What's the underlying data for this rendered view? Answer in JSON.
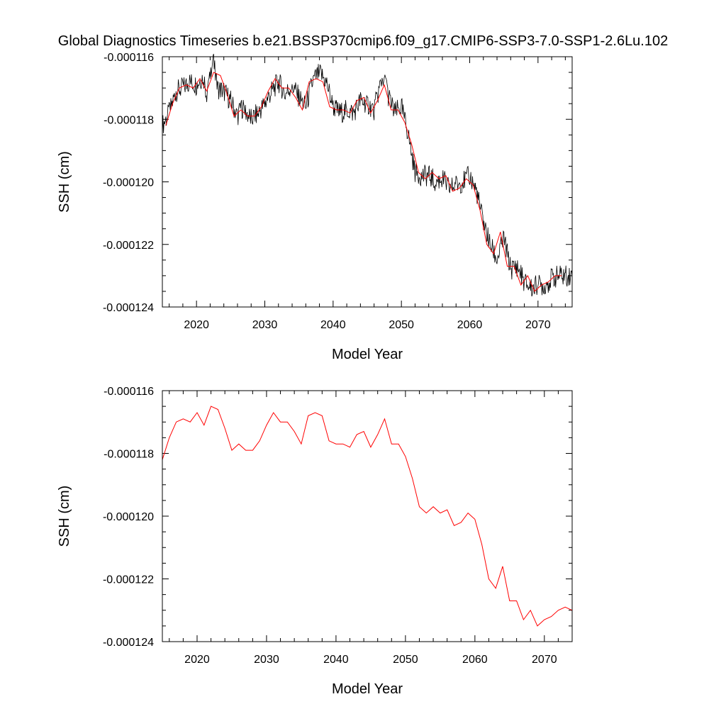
{
  "figure_title": "Global Diagnostics Timeseries b.e21.BSSP370cmip6.f09_g17.CMIP6-SSP3-7.0-SSP1-2.6Lu.102",
  "colors": {
    "monthly": "#000000",
    "annual": "#ff0000"
  },
  "chart_data": [
    {
      "type": "line",
      "title": "Global Diagnostics Timeseries b.e21.BSSP370cmip6.f09_g17.CMIP6-SSP3-7.0-SSP1-2.6Lu.102",
      "xlabel": "Model Year",
      "ylabel": "SSH (cm)",
      "xlim": [
        2015,
        2075
      ],
      "ylim": [
        -0.000124,
        -0.000116
      ],
      "x_ticks": [
        "2020",
        "2030",
        "2040",
        "2050",
        "2060",
        "2070"
      ],
      "y_ticks": [
        "-0.000116",
        "-0.000118",
        "-0.000120",
        "-0.000122",
        "-0.000124"
      ],
      "grid": false,
      "series": [
        {
          "kind": "monthly",
          "color": "#000000",
          "x": [
            2015.0,
            2016.0,
            2017.0,
            2018.0,
            2019.0,
            2020.0,
            2021.0,
            2021.5,
            2022.0,
            2022.5,
            2023.0,
            2024.0,
            2025.0,
            2026.0,
            2026.5,
            2027.0,
            2028.0,
            2029.0,
            2030.0,
            2031.0,
            2032.0,
            2033.0,
            2034.0,
            2035.0,
            2036.0,
            2037.0,
            2038.0,
            2039.0,
            2040.0,
            2041.0,
            2042.0,
            2043.0,
            2044.0,
            2045.0,
            2046.0,
            2047.0,
            2047.5,
            2048.0,
            2049.0,
            2050.0,
            2051.0,
            2052.0,
            2053.0,
            2054.0,
            2055.0,
            2056.0,
            2057.0,
            2058.0,
            2059.0,
            2060.0,
            2061.0,
            2062.0,
            2063.0,
            2064.0,
            2065.0,
            2066.0,
            2067.0,
            2068.0,
            2069.0,
            2070.0,
            2071.0,
            2072.0,
            2073.0,
            2074.0,
            2075.0
          ],
          "y": [
            -0.0001182,
            -0.0001178,
            -0.0001171,
            -0.000117,
            -0.0001168,
            -0.0001169,
            -0.0001166,
            -0.0001172,
            -0.0001167,
            -0.0001162,
            -0.000117,
            -0.0001171,
            -0.0001174,
            -0.0001179,
            -0.0001176,
            -0.0001177,
            -0.000118,
            -0.0001178,
            -0.0001175,
            -0.0001171,
            -0.0001168,
            -0.0001172,
            -0.0001169,
            -0.0001173,
            -0.0001176,
            -0.0001168,
            -0.0001165,
            -0.0001168,
            -0.0001176,
            -0.0001178,
            -0.0001177,
            -0.0001178,
            -0.0001174,
            -0.0001175,
            -0.0001177,
            -0.0001168,
            -0.0001166,
            -0.0001172,
            -0.0001178,
            -0.0001176,
            -0.0001185,
            -0.0001197,
            -0.0001198,
            -0.0001198,
            -0.00012,
            -0.0001199,
            -0.0001202,
            -0.0001201,
            -0.00012,
            -0.0001198,
            -0.0001203,
            -0.0001213,
            -0.000122,
            -0.0001225,
            -0.0001218,
            -0.0001228,
            -0.0001227,
            -0.0001232,
            -0.0001234,
            -0.0001233,
            -0.0001233,
            -0.0001231,
            -0.000123,
            -0.000123,
            -0.000123
          ]
        },
        {
          "kind": "annual",
          "color": "#ff0000",
          "x": [
            2015.5,
            2016.5,
            2017.5,
            2018.5,
            2019.5,
            2020.5,
            2021.5,
            2022.5,
            2023.5,
            2024.5,
            2025.5,
            2026.5,
            2027.5,
            2028.5,
            2029.5,
            2030.5,
            2031.5,
            2032.5,
            2033.5,
            2034.5,
            2035.5,
            2036.5,
            2037.5,
            2038.5,
            2039.5,
            2040.5,
            2041.5,
            2042.5,
            2043.5,
            2044.5,
            2045.5,
            2046.5,
            2047.5,
            2048.5,
            2049.5,
            2050.5,
            2051.5,
            2052.5,
            2053.5,
            2054.5,
            2055.5,
            2056.5,
            2057.5,
            2058.5,
            2059.5,
            2060.5,
            2061.5,
            2062.5,
            2063.5,
            2064.5,
            2065.5,
            2066.5,
            2067.5,
            2068.5,
            2069.5,
            2070.5,
            2071.5,
            2072.5,
            2073.5
          ],
          "y": [
            -0.0001182,
            -0.0001175,
            -0.000117,
            -0.0001169,
            -0.000117,
            -0.0001167,
            -0.0001171,
            -0.0001165,
            -0.0001166,
            -0.0001172,
            -0.0001179,
            -0.0001177,
            -0.0001179,
            -0.0001179,
            -0.0001176,
            -0.0001171,
            -0.0001167,
            -0.000117,
            -0.000117,
            -0.0001173,
            -0.0001177,
            -0.0001168,
            -0.0001167,
            -0.0001168,
            -0.0001176,
            -0.0001177,
            -0.0001177,
            -0.0001178,
            -0.0001174,
            -0.0001173,
            -0.0001178,
            -0.0001174,
            -0.0001169,
            -0.0001177,
            -0.0001177,
            -0.0001181,
            -0.0001188,
            -0.0001197,
            -0.0001199,
            -0.0001197,
            -0.0001199,
            -0.0001198,
            -0.0001203,
            -0.0001202,
            -0.0001199,
            -0.0001201,
            -0.0001209,
            -0.000122,
            -0.0001223,
            -0.0001216,
            -0.0001227,
            -0.0001227,
            -0.0001233,
            -0.000123,
            -0.0001235,
            -0.0001233,
            -0.0001232,
            -0.000123,
            -0.000123
          ]
        }
      ]
    },
    {
      "type": "line",
      "title": "",
      "xlabel": "Model Year",
      "ylabel": "SSH (cm)",
      "xlim": [
        2015,
        2074
      ],
      "ylim": [
        -0.000124,
        -0.000116
      ],
      "x_ticks": [
        "2020",
        "2030",
        "2040",
        "2050",
        "2060",
        "2070"
      ],
      "y_ticks": [
        "-0.000116",
        "-0.000118",
        "-0.000120",
        "-0.000122",
        "-0.000124"
      ],
      "grid": false,
      "series": [
        {
          "kind": "annual",
          "color": "#ff0000",
          "x": [
            2015,
            2016,
            2017,
            2018,
            2019,
            2020,
            2021,
            2022,
            2023,
            2024,
            2025,
            2026,
            2027,
            2028,
            2029,
            2030,
            2031,
            2032,
            2033,
            2034,
            2035,
            2036,
            2037,
            2038,
            2039,
            2040,
            2041,
            2042,
            2043,
            2044,
            2045,
            2046,
            2047,
            2048,
            2049,
            2050,
            2051,
            2052,
            2053,
            2054,
            2055,
            2056,
            2057,
            2058,
            2059,
            2060,
            2061,
            2062,
            2063,
            2064,
            2065,
            2066,
            2067,
            2068,
            2069,
            2070,
            2071,
            2072,
            2073,
            2074
          ],
          "y": [
            -0.0001182,
            -0.0001175,
            -0.000117,
            -0.0001169,
            -0.000117,
            -0.0001167,
            -0.0001171,
            -0.0001165,
            -0.0001166,
            -0.0001172,
            -0.0001179,
            -0.0001177,
            -0.0001179,
            -0.0001179,
            -0.0001176,
            -0.0001171,
            -0.0001167,
            -0.000117,
            -0.000117,
            -0.0001173,
            -0.0001177,
            -0.0001168,
            -0.0001167,
            -0.0001168,
            -0.0001176,
            -0.0001177,
            -0.0001177,
            -0.0001178,
            -0.0001174,
            -0.0001173,
            -0.0001178,
            -0.0001174,
            -0.0001169,
            -0.0001177,
            -0.0001177,
            -0.0001181,
            -0.0001188,
            -0.0001197,
            -0.0001199,
            -0.0001197,
            -0.0001199,
            -0.0001198,
            -0.0001203,
            -0.0001202,
            -0.0001199,
            -0.0001201,
            -0.0001209,
            -0.000122,
            -0.0001223,
            -0.0001216,
            -0.0001227,
            -0.0001227,
            -0.0001233,
            -0.000123,
            -0.0001235,
            -0.0001233,
            -0.0001232,
            -0.000123,
            -0.0001229,
            -0.000123
          ]
        }
      ]
    }
  ]
}
